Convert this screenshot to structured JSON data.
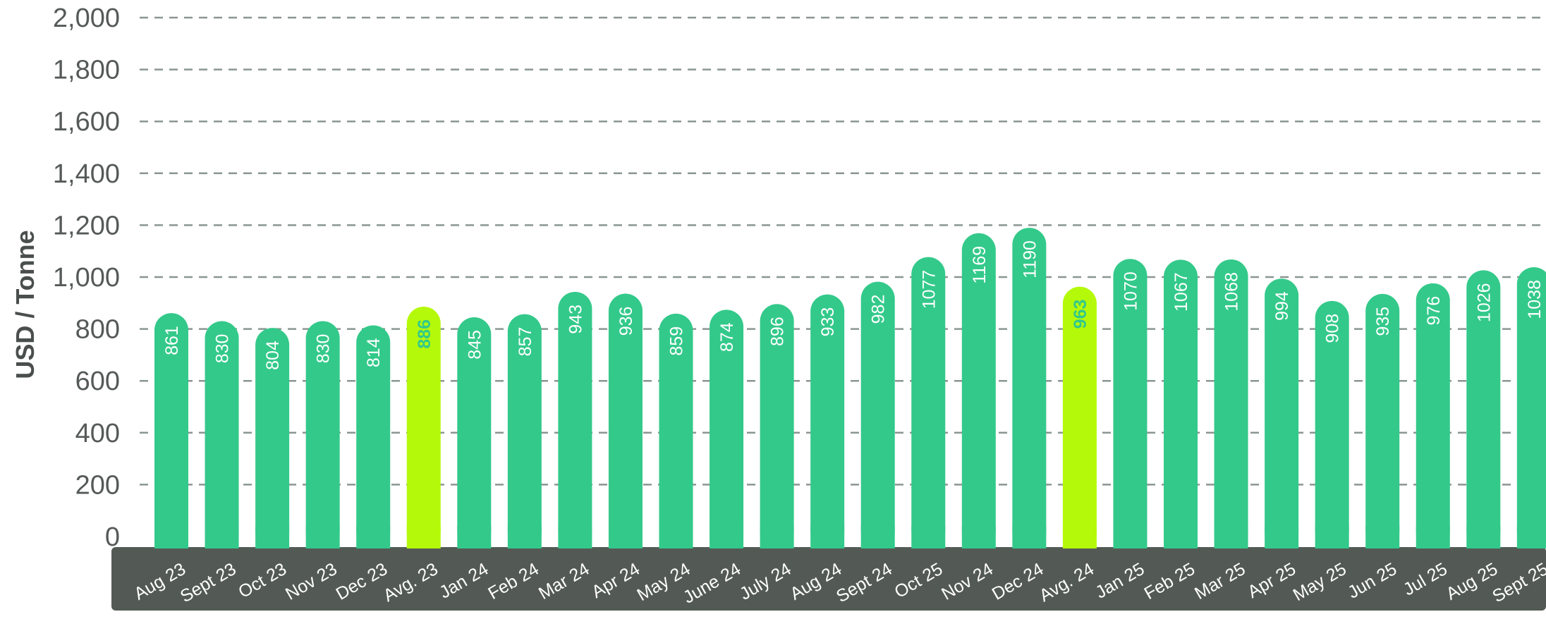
{
  "chart_data": {
    "type": "bar",
    "title": "",
    "xlabel": "",
    "ylabel": "USD / Tonne",
    "ylim": [
      0,
      2000
    ],
    "yticks": [
      0,
      200,
      400,
      600,
      800,
      1000,
      1200,
      1400,
      1600,
      1800,
      2000
    ],
    "ytick_labels": [
      "0",
      "200",
      "400",
      "600",
      "800",
      "1,000",
      "1,200",
      "1,400",
      "1,600",
      "1,800",
      "2,000"
    ],
    "grid": true,
    "legend": "none",
    "categories": [
      "Aug 23",
      "Sept 23",
      "Oct 23",
      "Nov 23",
      "Dec 23",
      "Avg. 23",
      "Jan 24",
      "Feb 24",
      "Mar 24",
      "Apr 24",
      "May 24",
      "June 24",
      "July 24",
      "Aug 24",
      "Sept 24",
      "Oct 25",
      "Nov 24",
      "Dec 24",
      "Avg. 24",
      "Jan 25",
      "Feb 25",
      "Mar 25",
      "Apr 25",
      "May 25",
      "Jun 25",
      "Jul 25",
      "Aug 25",
      "Sept 25"
    ],
    "values": [
      861,
      830,
      804,
      830,
      814,
      886,
      845,
      857,
      943,
      936,
      859,
      874,
      896,
      933,
      982,
      1077,
      1169,
      1190,
      963,
      1070,
      1067,
      1068,
      994,
      908,
      935,
      976,
      1026,
      1038
    ],
    "highlight_categories": [
      "Avg. 23",
      "Avg. 24"
    ],
    "colors": {
      "bar": "#33c98a",
      "highlight_bar": "#b5f90a",
      "label": "#ffffff",
      "highlight_label": "#33c98a",
      "axis_band": "#535a55",
      "grid": "#8a9692"
    }
  }
}
